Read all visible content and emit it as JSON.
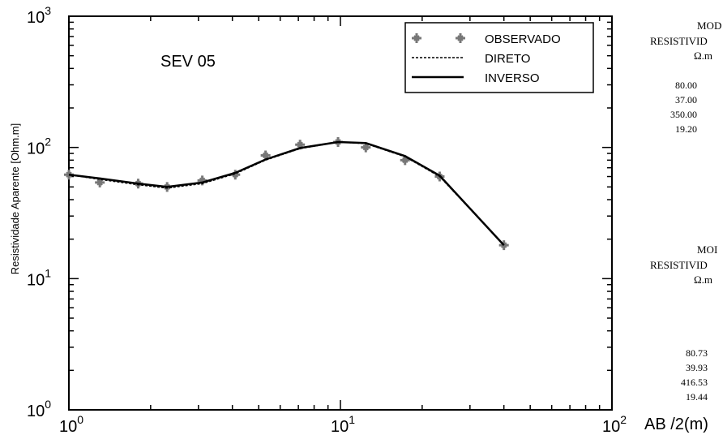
{
  "chart_data": {
    "type": "line",
    "title": "SEV 05",
    "xlabel": "AB /2(m)",
    "ylabel": "Resistividade Aparente [Ohm.m]",
    "x_scale": "log",
    "y_scale": "log",
    "xlim": [
      1,
      100
    ],
    "ylim": [
      1,
      1000
    ],
    "x_ticks": [
      {
        "value": 1,
        "base": "10",
        "exp": "0"
      },
      {
        "value": 10,
        "base": "10",
        "exp": "1"
      },
      {
        "value": 100,
        "base": "10",
        "exp": "2"
      }
    ],
    "y_ticks": [
      {
        "value": 1,
        "base": "10",
        "exp": "0"
      },
      {
        "value": 10,
        "base": "10",
        "exp": "1"
      },
      {
        "value": 100,
        "base": "10",
        "exp": "2"
      },
      {
        "value": 1000,
        "base": "10",
        "exp": "3"
      }
    ],
    "legend_position": "top-right",
    "series": [
      {
        "name": "OBSERVADO",
        "style": "markers",
        "x": [
          1,
          1.3,
          1.8,
          2.3,
          3.1,
          4.1,
          5.3,
          7.1,
          9.8,
          12.4,
          17.3,
          23.2,
          40
        ],
        "y": [
          62,
          54,
          53,
          50,
          56,
          62,
          87,
          105,
          110,
          100,
          80,
          60,
          18
        ]
      },
      {
        "name": "DIRETO",
        "style": "dashed",
        "x": [
          1,
          1.3,
          1.8,
          2.3,
          3.1,
          4.1,
          5.3,
          7.1,
          9.8,
          12.4,
          17.3,
          23.2,
          40
        ],
        "y": [
          62,
          57,
          52,
          49,
          53,
          63,
          80,
          98,
          110,
          107,
          85,
          60,
          18
        ]
      },
      {
        "name": "INVERSO",
        "style": "solid",
        "x": [
          1,
          1.3,
          1.8,
          2.3,
          3.1,
          4.1,
          5.3,
          7.1,
          9.8,
          12.4,
          17.3,
          23.2,
          40
        ],
        "y": [
          62,
          58,
          53,
          50,
          54,
          64,
          81,
          99,
          110,
          108,
          86,
          61,
          18
        ]
      }
    ]
  },
  "side_panel": {
    "top": {
      "header": [
        "MOD",
        "RESISTIVID",
        "Ω.m"
      ],
      "values": [
        "80.00",
        "37.00",
        "350.00",
        "19.20"
      ]
    },
    "bottom": {
      "header": [
        "MOI",
        "RESISTIVID",
        "Ω.m"
      ],
      "values": [
        "80.73",
        "39.93",
        "416.53",
        "19.44"
      ]
    }
  }
}
